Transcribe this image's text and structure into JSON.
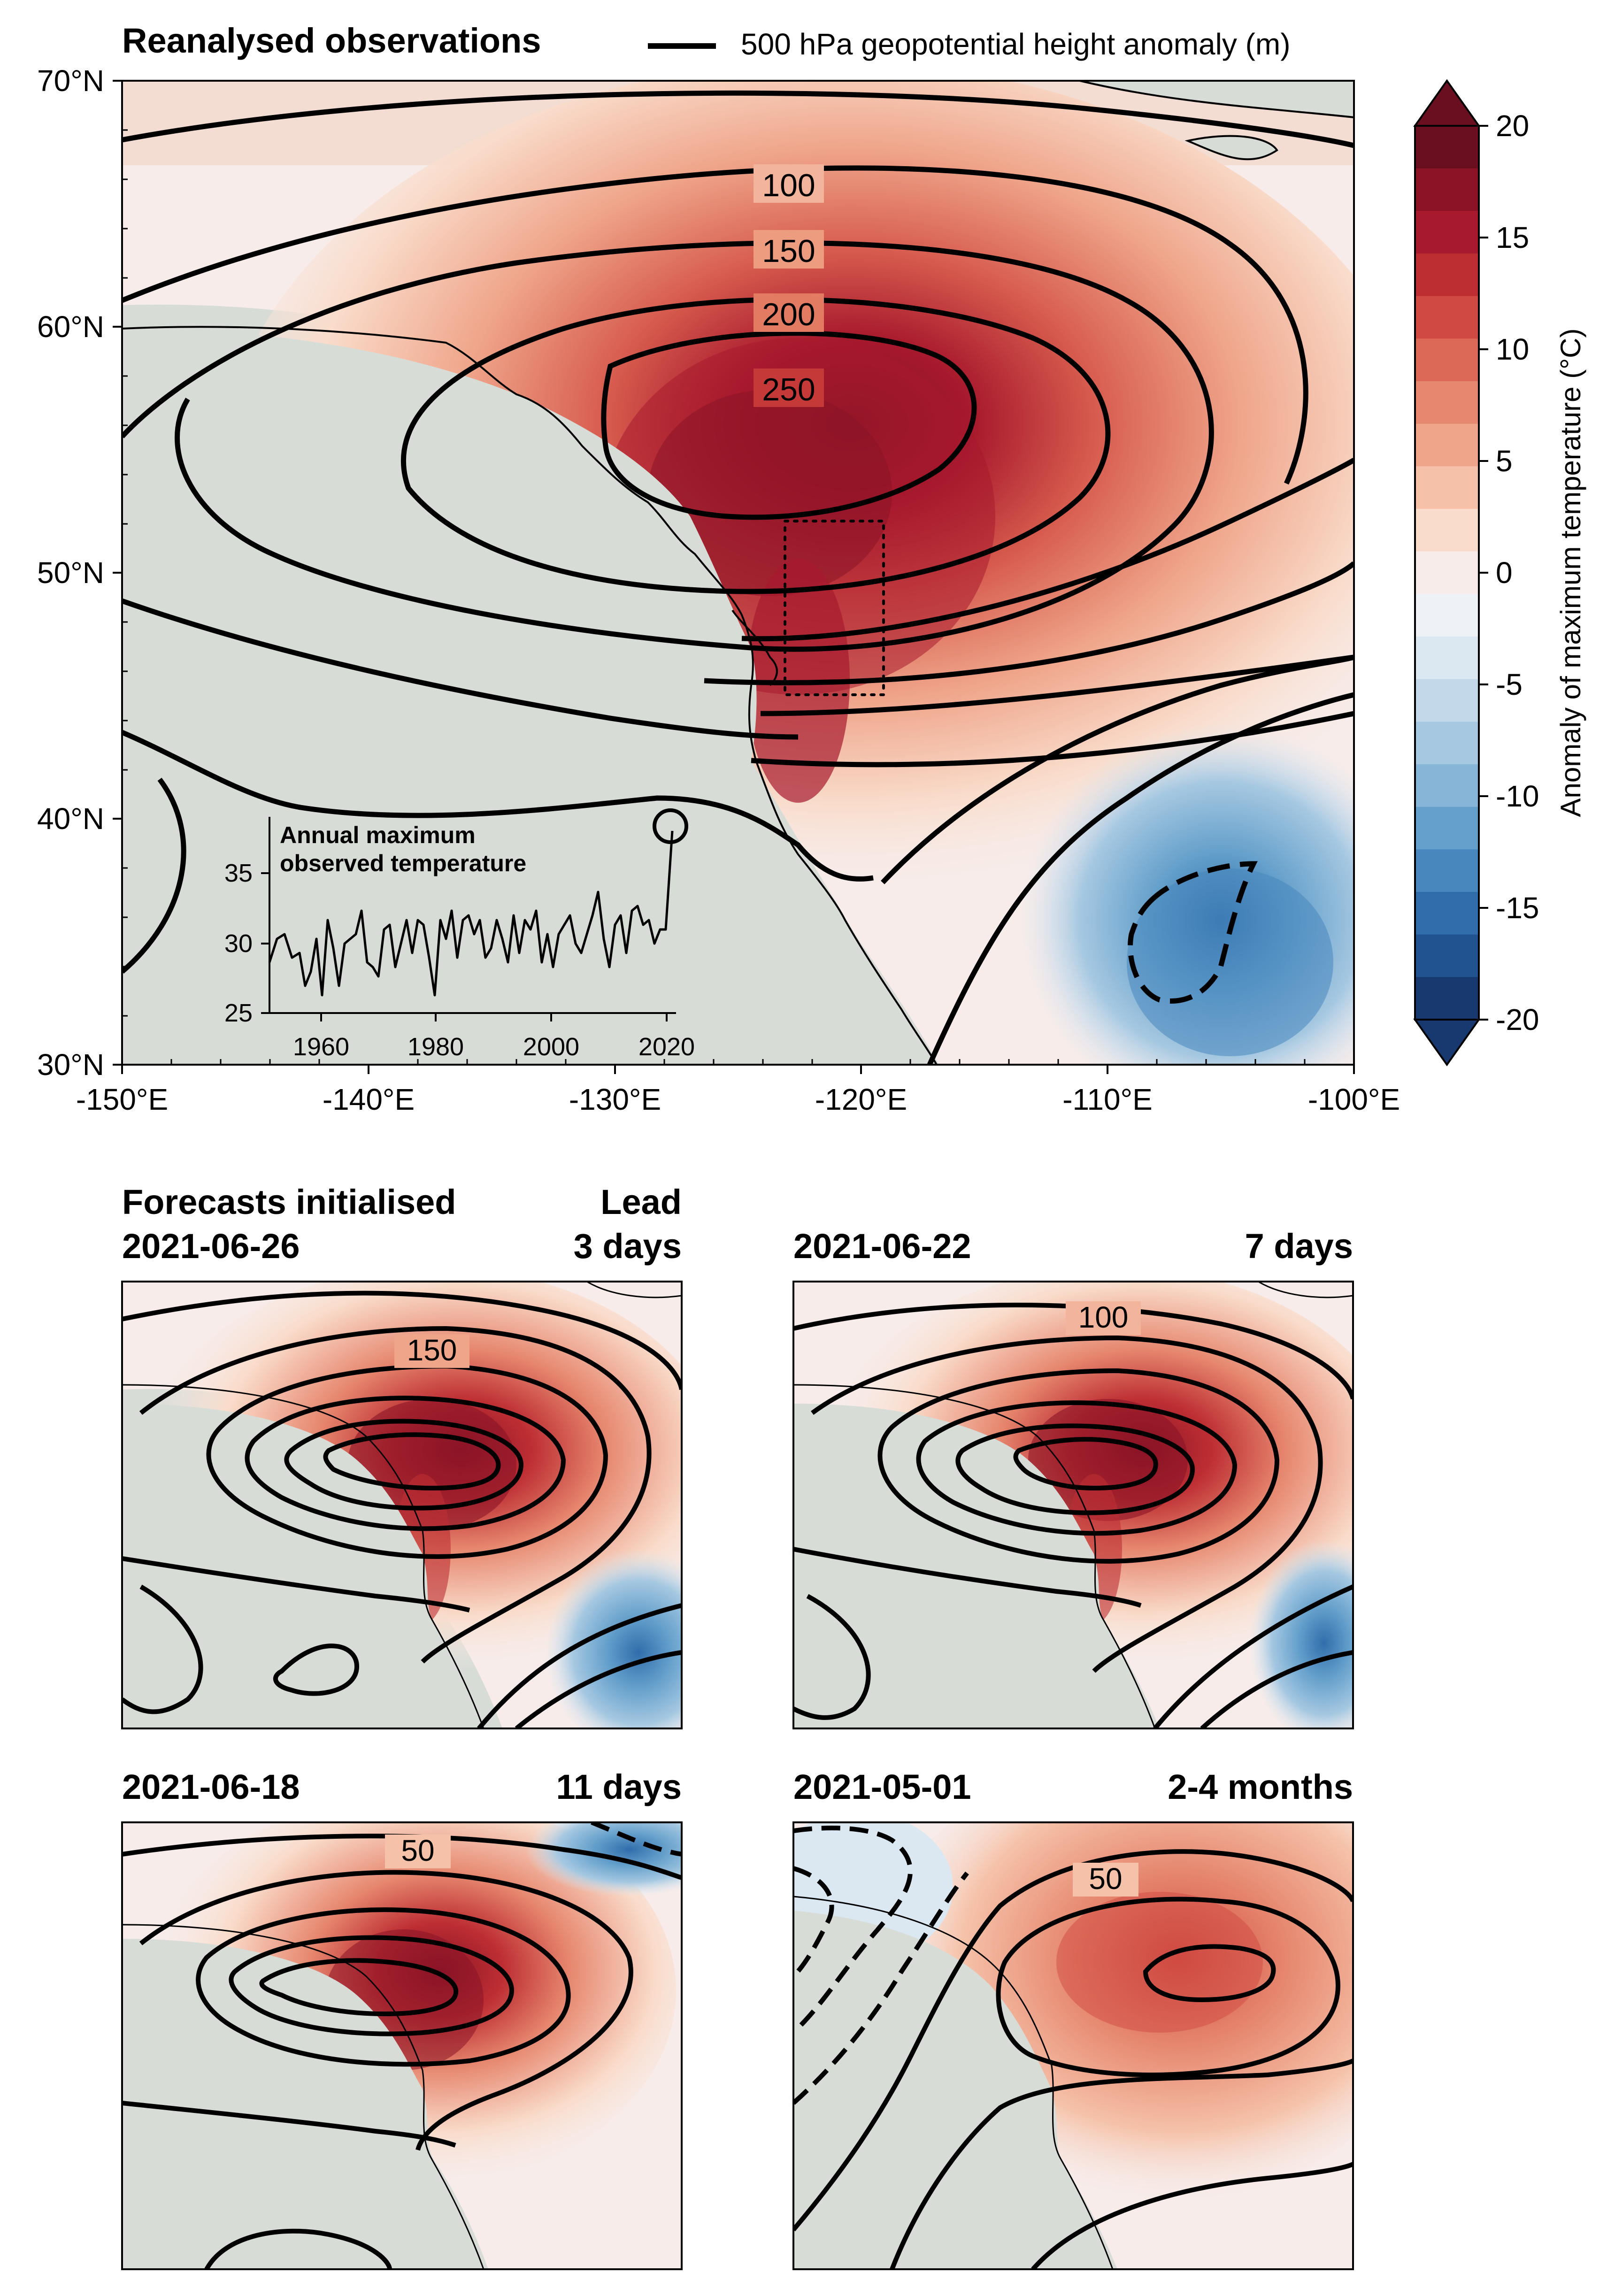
{
  "main": {
    "title": "Reanalysed observations",
    "legend_label": "500 hPa geopotential height anomaly (m)",
    "lat_ticks": [
      "70°N",
      "60°N",
      "50°N",
      "40°N",
      "30°N"
    ],
    "lon_ticks": [
      "-150°E",
      "-140°E",
      "-130°E",
      "-120°E",
      "-110°E",
      "-100°E"
    ],
    "contour_labels": [
      "100",
      "150",
      "200",
      "250"
    ]
  },
  "colorbar": {
    "label": "Anomaly of maximum temperature (°C)",
    "ticks": [
      "20",
      "15",
      "10",
      "5",
      "0",
      "-5",
      "-10",
      "-15",
      "-20"
    ],
    "colors": [
      "#6a0f1f",
      "#8a1426",
      "#a7192d",
      "#bd2e33",
      "#cf4a42",
      "#dc6857",
      "#e6876f",
      "#efa58a",
      "#f5c2a9",
      "#f9dccb",
      "#f7ecea",
      "#eef2f6",
      "#dbe8f2",
      "#c3d9ea",
      "#a6c8e1",
      "#86b5d7",
      "#65a0cb",
      "#4787bd",
      "#316dab",
      "#215391",
      "#17396f"
    ]
  },
  "inset": {
    "title_line1": "Annual maximum",
    "title_line2": "observed temperature",
    "y_ticks": [
      "35",
      "30",
      "25"
    ],
    "x_ticks": [
      "1960",
      "1980",
      "2000",
      "2020"
    ]
  },
  "forecasts": {
    "header_title_line1": "Forecasts initialised",
    "header_lead_line1": "Lead",
    "panels": [
      {
        "date": "2021-06-26",
        "lead": "3 days",
        "contour_label": "150"
      },
      {
        "date": "2021-06-22",
        "lead": "7 days",
        "contour_label": "100"
      },
      {
        "date": "2021-06-18",
        "lead": "11 days",
        "contour_label": "50"
      },
      {
        "date": "2021-05-01",
        "lead": "2-4 months",
        "contour_label": "50"
      }
    ]
  }
}
